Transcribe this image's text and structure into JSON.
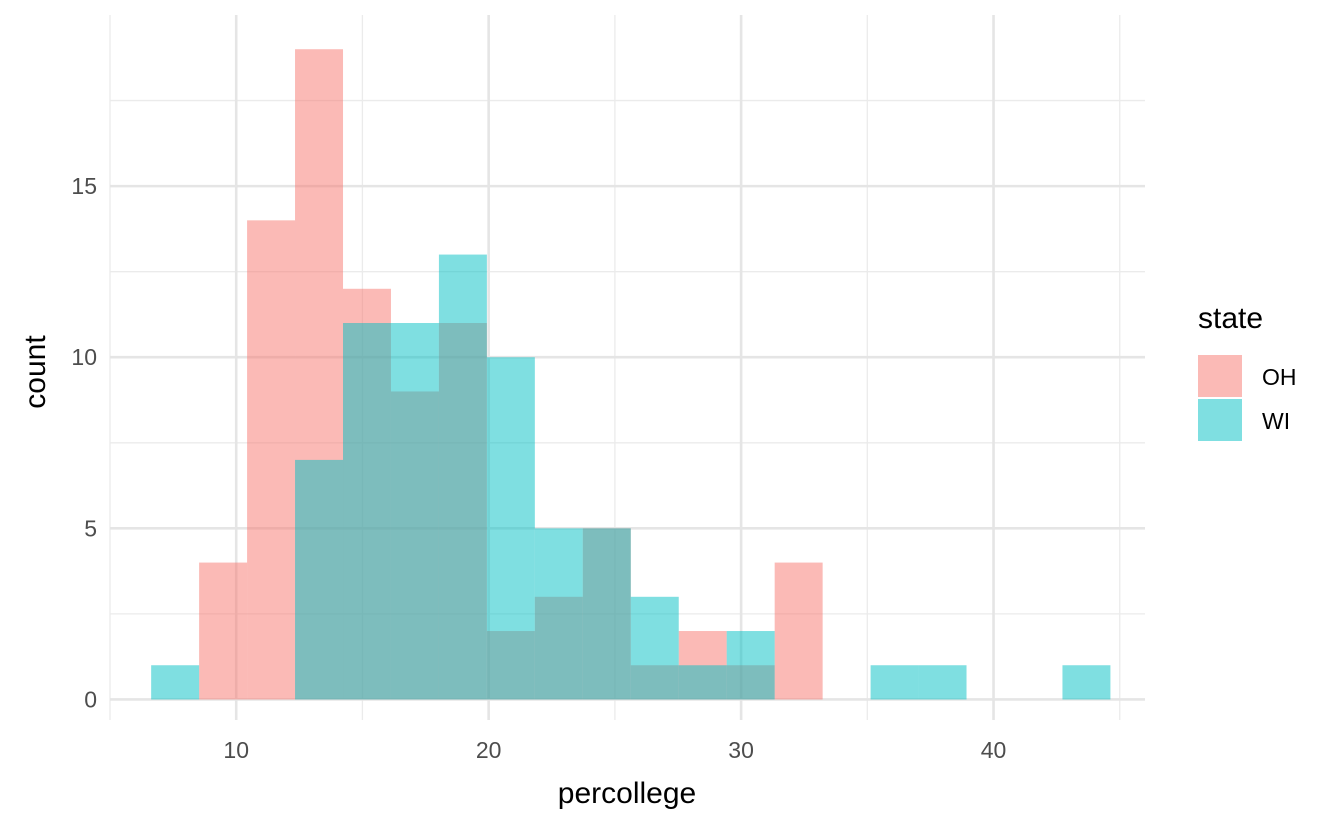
{
  "chart_data": {
    "type": "bar",
    "subtype": "overlapping-histogram",
    "title": "",
    "xlabel": "percollege",
    "ylabel": "count",
    "xlim": [
      5,
      46
    ],
    "ylim": [
      -0.6,
      20
    ],
    "x_ticks": [
      10,
      20,
      30,
      40
    ],
    "y_ticks": [
      0,
      5,
      10,
      15
    ],
    "x_minor_ticks": [
      5,
      15,
      25,
      35,
      45
    ],
    "y_minor_ticks": [
      2.5,
      7.5,
      12.5,
      17.5
    ],
    "grid": true,
    "legend": {
      "title": "state",
      "position": "right"
    },
    "bin_edges": [
      6.63,
      8.53,
      10.43,
      12.33,
      14.23,
      16.13,
      18.03,
      19.93,
      21.83,
      23.73,
      25.63,
      27.53,
      29.43,
      31.33,
      33.23,
      35.13,
      37.03,
      38.93,
      40.83,
      42.73,
      44.63
    ],
    "series": [
      {
        "name": "OH",
        "color": "#F8766D",
        "counts": [
          0,
          4,
          14,
          19,
          12,
          9,
          11,
          2,
          3,
          5,
          1,
          2,
          1,
          4,
          0,
          0,
          0,
          0,
          0,
          0
        ]
      },
      {
        "name": "WI",
        "color": "#00BFC4",
        "counts": [
          1,
          0,
          0,
          7,
          11,
          11,
          13,
          10,
          5,
          5,
          3,
          1,
          2,
          0,
          0,
          1,
          1,
          0,
          0,
          1
        ]
      }
    ],
    "fill_opacity": 0.5
  }
}
